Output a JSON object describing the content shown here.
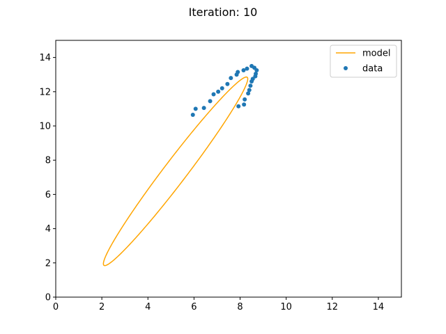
{
  "chart_data": {
    "type": "scatter",
    "title": "Iteration:  10",
    "xlabel": "",
    "ylabel": "",
    "xlim": [
      0,
      15
    ],
    "ylim": [
      0,
      15
    ],
    "xticks": [
      "0",
      "2",
      "4",
      "6",
      "8",
      "10",
      "12",
      "14"
    ],
    "yticks": [
      "0",
      "2",
      "4",
      "6",
      "8",
      "10",
      "12",
      "14"
    ],
    "grid": false,
    "legend": {
      "placement": "top-right",
      "entries": [
        "model",
        "data"
      ]
    },
    "colors": {
      "model": "#ffa500",
      "data": "#1f77b4"
    },
    "series": [
      {
        "name": "model",
        "kind": "line",
        "ellipse": {
          "center": [
            5.2,
            7.35
          ],
          "u": [
            3.1,
            5.5
          ],
          "v": [
            -0.45,
            0.3
          ]
        }
      },
      {
        "name": "data",
        "kind": "scatter",
        "points": [
          [
            5.95,
            10.65
          ],
          [
            6.07,
            11.0
          ],
          [
            6.43,
            11.05
          ],
          [
            6.7,
            11.45
          ],
          [
            6.85,
            11.85
          ],
          [
            7.05,
            12.0
          ],
          [
            7.22,
            12.2
          ],
          [
            7.45,
            12.45
          ],
          [
            7.6,
            12.8
          ],
          [
            7.85,
            13.0
          ],
          [
            7.9,
            13.15
          ],
          [
            8.15,
            13.25
          ],
          [
            8.3,
            13.35
          ],
          [
            8.5,
            13.5
          ],
          [
            8.62,
            13.4
          ],
          [
            8.72,
            13.25
          ],
          [
            8.68,
            13.05
          ],
          [
            8.66,
            12.9
          ],
          [
            8.55,
            12.75
          ],
          [
            8.5,
            12.6
          ],
          [
            8.45,
            12.35
          ],
          [
            8.4,
            12.1
          ],
          [
            8.35,
            11.9
          ],
          [
            8.2,
            11.55
          ],
          [
            7.93,
            11.15
          ],
          [
            8.17,
            11.25
          ]
        ]
      }
    ]
  }
}
